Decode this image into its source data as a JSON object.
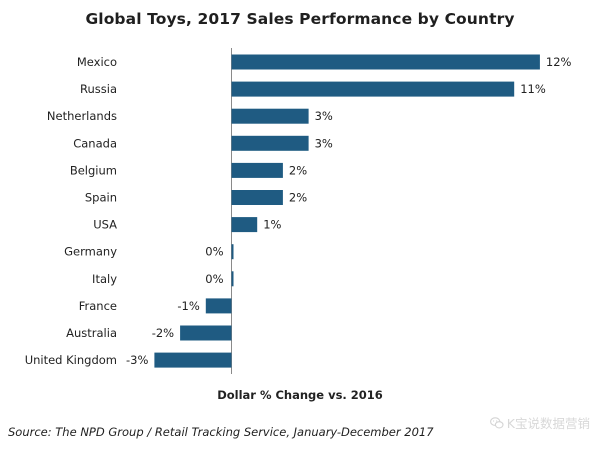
{
  "chart_data": {
    "type": "bar",
    "orientation": "horizontal",
    "title": "Global Toys, 2017 Sales Performance by Country",
    "xlabel": "Dollar % Change vs. 2016",
    "ylabel": "",
    "categories": [
      "Mexico",
      "Russia",
      "Netherlands",
      "Canada",
      "Belgium",
      "Spain",
      "USA",
      "Germany",
      "Italy",
      "France",
      "Australia",
      "United Kingdom"
    ],
    "values": [
      12,
      11,
      3,
      3,
      2,
      2,
      1,
      0,
      0,
      -1,
      -2,
      -3
    ],
    "value_labels": [
      "12%",
      "11%",
      "3%",
      "3%",
      "2%",
      "2%",
      "1%",
      "0%",
      "0%",
      "-1%",
      "-2%",
      "-3%"
    ],
    "xlim": [
      -3,
      12
    ],
    "grid": false,
    "bar_color": "#1f5b82",
    "source": "Source: The NPD Group / Retail Tracking Service, January-December 2017"
  },
  "watermark": {
    "text": "K宝说数据营销",
    "icon": "wechat-icon"
  }
}
